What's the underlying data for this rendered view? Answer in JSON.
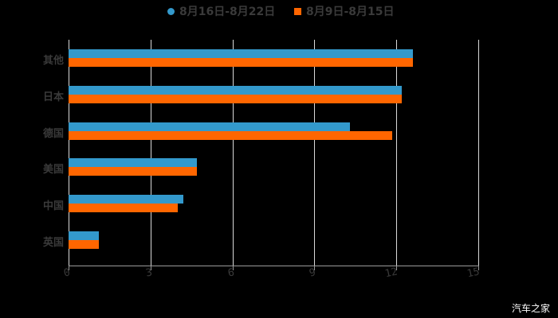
{
  "chart_data": {
    "type": "bar",
    "orientation": "horizontal",
    "title": "",
    "xlabel": "",
    "ylabel": "",
    "categories": [
      "其他",
      "日本",
      "德国",
      "美国",
      "中国",
      "英国"
    ],
    "series": [
      {
        "name": "8月16日-8月22日",
        "color": "#3399cc",
        "values": [
          12.6,
          12.2,
          10.3,
          4.7,
          4.2,
          1.1
        ]
      },
      {
        "name": "8月9日-8月15日",
        "color": "#ff6600",
        "values": [
          12.6,
          12.2,
          11.85,
          4.7,
          4.0,
          1.1
        ]
      }
    ],
    "xlim": [
      0,
      15
    ],
    "xticks": [
      0,
      3,
      6,
      9,
      12,
      15
    ],
    "grid": true,
    "legend_position": "top"
  },
  "legend": {
    "items": [
      {
        "label": "8月16日-8月22日",
        "color": "#3399cc",
        "marker": "circle"
      },
      {
        "label": "8月9日-8月15日",
        "color": "#ff6600",
        "marker": "square"
      }
    ]
  },
  "axis": {
    "ticks": [
      "0",
      "3",
      "6",
      "9",
      "12",
      "15"
    ]
  },
  "watermark": "汽车之家"
}
